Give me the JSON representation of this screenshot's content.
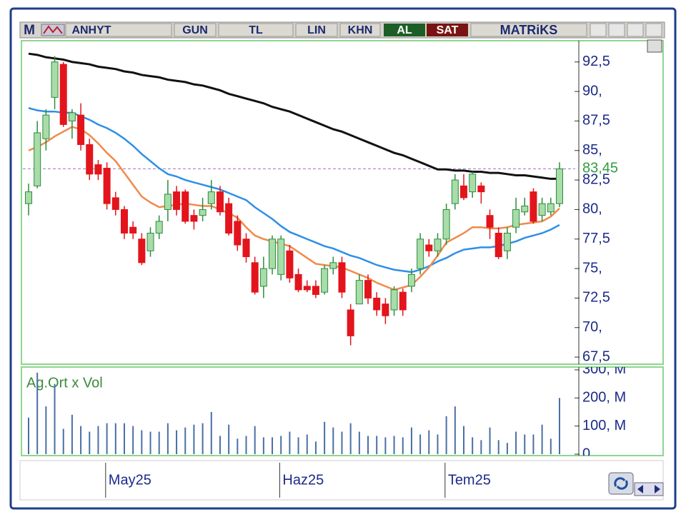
{
  "toolbar": {
    "logo": "M",
    "symbol": "ANHYT",
    "buttons": [
      "GUN",
      "TL",
      "LIN",
      "KHN"
    ],
    "buy": "AL",
    "sell": "SAT",
    "brand": "MATRiKS"
  },
  "chart_data": [
    {
      "type": "candlestick",
      "categories": [
        null,
        null,
        null,
        null,
        null,
        null,
        null,
        null,
        null,
        null,
        "May25",
        null,
        null,
        null,
        null,
        null,
        null,
        null,
        null,
        null,
        null,
        null,
        null,
        null,
        null,
        null,
        null,
        null,
        null,
        null,
        "Haz25",
        null,
        null,
        null,
        null,
        null,
        null,
        null,
        null,
        null,
        null,
        null,
        null,
        null,
        null,
        null,
        null,
        null,
        null,
        "Tem25",
        null,
        null,
        null,
        null,
        null,
        null,
        null,
        null,
        null,
        null,
        null,
        null
      ],
      "open": [
        80.5,
        82,
        86,
        89.5,
        92.3,
        87.5,
        88,
        85.5,
        83.8,
        83.5,
        81,
        80,
        78.5,
        77.5,
        76.5,
        78,
        80,
        81.5,
        81.5,
        79.5,
        79.5,
        80.5,
        81.5,
        80.5,
        79,
        77.5,
        75.5,
        73.5,
        75,
        74.5,
        76.5,
        74.5,
        73.5,
        73.5,
        73,
        75,
        75.5,
        71.5,
        72,
        74,
        72.5,
        72,
        71.5,
        73,
        73.5,
        75,
        77,
        76.5,
        77.5,
        80.5,
        82,
        81.5,
        82,
        79.5,
        78,
        76.5,
        78.5,
        79.8,
        81.5,
        79.5,
        79.8,
        80.5
      ],
      "high": [
        82.2,
        87.5,
        88.5,
        93,
        92.5,
        88.5,
        89,
        86,
        84.2,
        84,
        81.5,
        80.3,
        79,
        78,
        78.5,
        79.5,
        82.5,
        82,
        81.7,
        80,
        81,
        82.5,
        82,
        81,
        79.5,
        78,
        76,
        76,
        77.8,
        77.8,
        77,
        75,
        74,
        74,
        75.3,
        76,
        76,
        72,
        74.5,
        74.5,
        73,
        72.5,
        73.5,
        73.3,
        75,
        78,
        77.5,
        78,
        80.5,
        83,
        83,
        83.2,
        82.3,
        80,
        78.5,
        78.5,
        81,
        81,
        81.8,
        81,
        81,
        84
      ],
      "low": [
        79.5,
        81.8,
        85,
        88.5,
        87,
        86,
        85,
        82.5,
        82.5,
        80,
        79.5,
        77.5,
        77.5,
        75.3,
        76,
        77.5,
        79,
        79.5,
        78.8,
        78.3,
        79,
        80,
        79.5,
        77.8,
        76.5,
        75.5,
        72.8,
        72.5,
        74.5,
        74,
        73.8,
        73,
        73,
        72.5,
        72.8,
        74.5,
        72.5,
        68.5,
        72,
        72,
        71,
        70.3,
        71,
        71,
        73,
        74.5,
        76,
        76,
        77,
        80,
        80.8,
        81,
        80.5,
        77.5,
        75.8,
        75.8,
        78,
        79.5,
        78.8,
        79,
        79.5,
        80.2
      ],
      "close": [
        81.5,
        86.5,
        88,
        92.5,
        87.2,
        88.2,
        85.5,
        83,
        83,
        80.5,
        80,
        78,
        78,
        75.5,
        78,
        79,
        81.3,
        80,
        79,
        79,
        80,
        81.5,
        79.8,
        78,
        77,
        76,
        73,
        75,
        77.5,
        77.5,
        74.2,
        73.2,
        73.2,
        72.8,
        75,
        75.5,
        73,
        69.3,
        74,
        72.5,
        71.5,
        71,
        73.2,
        71.5,
        74.5,
        77.5,
        76.5,
        77.5,
        80,
        82.5,
        81,
        83,
        81.5,
        78.5,
        76,
        78,
        80,
        80.3,
        79,
        80.5,
        80.5,
        83.45
      ],
      "up_color": "#2e8b3e",
      "down_color": "#e3141c",
      "series": [
        {
          "color": "#111111",
          "values": [
            93.2,
            93.1,
            92.9,
            92.8,
            92.7,
            92.5,
            92.4,
            92.3,
            92.1,
            92.0,
            91.9,
            91.7,
            91.6,
            91.4,
            91.3,
            91.2,
            91.0,
            90.9,
            90.8,
            90.6,
            90.5,
            90.3,
            90.1,
            89.8,
            89.6,
            89.4,
            89.2,
            89.0,
            88.7,
            88.5,
            88.3,
            88.0,
            87.7,
            87.4,
            87.1,
            86.8,
            86.6,
            86.3,
            86.0,
            85.7,
            85.4,
            85.1,
            84.8,
            84.6,
            84.3,
            84.0,
            83.7,
            83.4,
            83.4,
            83.3,
            83.3,
            83.2,
            83.2,
            83.1,
            83.1,
            83.0,
            82.9,
            82.9,
            82.8,
            82.7,
            82.6,
            82.6
          ]
        },
        {
          "color": "#2f8fe6",
          "values": [
            88.6,
            88.4,
            88.3,
            88.3,
            88.2,
            88.2,
            87.9,
            87.6,
            87.2,
            86.9,
            86.5,
            86.0,
            85.4,
            84.7,
            84.1,
            83.5,
            83.0,
            82.8,
            82.5,
            82.3,
            82.1,
            81.9,
            81.7,
            81.4,
            81.1,
            80.8,
            80.2,
            79.7,
            79.2,
            78.6,
            78.1,
            77.8,
            77.5,
            77.2,
            76.9,
            76.7,
            76.4,
            76.1,
            75.9,
            75.6,
            75.3,
            75.1,
            74.9,
            74.8,
            74.7,
            74.9,
            75.2,
            75.6,
            75.9,
            76.3,
            76.6,
            76.7,
            76.8,
            76.8,
            76.9,
            77.1,
            77.3,
            77.6,
            77.8,
            78.0,
            78.3,
            78.7
          ]
        },
        {
          "color": "#f08a4b",
          "values": [
            85.0,
            85.3,
            85.7,
            86.2,
            86.6,
            87.0,
            86.8,
            86.3,
            85.6,
            84.8,
            84.1,
            83.1,
            82.1,
            81.1,
            80.6,
            80.2,
            80.3,
            80.4,
            80.5,
            80.4,
            80.3,
            80.3,
            80.0,
            79.7,
            79.3,
            78.5,
            77.8,
            77.5,
            77.3,
            77.1,
            76.9,
            76.4,
            75.9,
            75.4,
            75.3,
            75.2,
            75.1,
            74.8,
            74.5,
            74.2,
            73.8,
            73.5,
            73.2,
            73.4,
            73.6,
            74.3,
            75.1,
            76.1,
            77.2,
            77.6,
            78.0,
            78.5,
            78.5,
            78.4,
            78.4,
            78.5,
            78.7,
            78.8,
            78.9,
            79.0,
            79.4,
            80.1
          ]
        }
      ],
      "last_price": {
        "value": 83.45,
        "label": "83,45"
      },
      "ylim": [
        66.9,
        94.3
      ],
      "yticks": [
        {
          "value": 67.5,
          "label": "67,5"
        },
        {
          "value": 70,
          "label": "70,"
        },
        {
          "value": 72.5,
          "label": "72,5"
        },
        {
          "value": 75,
          "label": "75,"
        },
        {
          "value": 77.5,
          "label": "77,5"
        },
        {
          "value": 80,
          "label": "80,"
        },
        {
          "value": 82.5,
          "label": "82,5"
        },
        {
          "value": 85,
          "label": "85,"
        },
        {
          "value": 87.5,
          "label": "87,5"
        },
        {
          "value": 90,
          "label": "90,"
        },
        {
          "value": 92.5,
          "label": "92,5"
        }
      ]
    },
    {
      "type": "bar",
      "title": "Ag.Ort x Vol",
      "color": "#4a6fa5",
      "values": [
        130,
        290,
        170,
        250,
        90,
        140,
        100,
        80,
        100,
        110,
        110,
        110,
        100,
        85,
        80,
        80,
        110,
        85,
        95,
        105,
        110,
        150,
        65,
        105,
        55,
        65,
        100,
        60,
        60,
        65,
        80,
        60,
        70,
        45,
        115,
        95,
        80,
        110,
        80,
        65,
        65,
        60,
        65,
        60,
        95,
        70,
        85,
        70,
        135,
        170,
        100,
        60,
        50,
        95,
        50,
        40,
        80,
        70,
        70,
        105,
        55,
        200
      ],
      "ylim": [
        0,
        310
      ],
      "yticks": [
        0,
        {
          "value": 100,
          "label": "100, M"
        },
        {
          "value": 200,
          "label": "200, M"
        },
        {
          "value": 300,
          "label": "300, M"
        }
      ]
    }
  ]
}
